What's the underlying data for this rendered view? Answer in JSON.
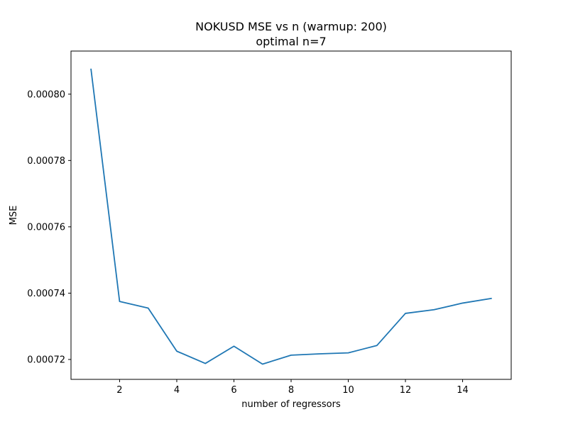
{
  "chart_data": {
    "type": "line",
    "title": "NOKUSD MSE vs n (warmup: 200)",
    "subtitle": "optimal n=7",
    "xlabel": "number of regressors",
    "ylabel": "MSE",
    "xlim": [
      0.3,
      15.7
    ],
    "ylim": [
      0.000714,
      0.000813
    ],
    "grid": false,
    "x_ticks": [
      2,
      4,
      6,
      8,
      10,
      12,
      14
    ],
    "x_tick_labels": [
      "2",
      "4",
      "6",
      "8",
      "10",
      "12",
      "14"
    ],
    "y_ticks": [
      0.00072,
      0.00074,
      0.00076,
      0.00078,
      0.0008
    ],
    "y_tick_labels": [
      "0.00072",
      "0.00074",
      "0.00076",
      "0.00078",
      "0.00080"
    ],
    "series": [
      {
        "color": "#1f77b4",
        "x": [
          1,
          2,
          3,
          4,
          5,
          6,
          7,
          8,
          9,
          10,
          11,
          12,
          13,
          14,
          15
        ],
        "y": [
          0.0008075,
          0.0007375,
          0.0007355,
          0.0007225,
          0.0007188,
          0.000724,
          0.0007186,
          0.0007213,
          0.0007217,
          0.000722,
          0.0007242,
          0.0007339,
          0.000735,
          0.000737,
          0.0007384
        ]
      }
    ]
  }
}
